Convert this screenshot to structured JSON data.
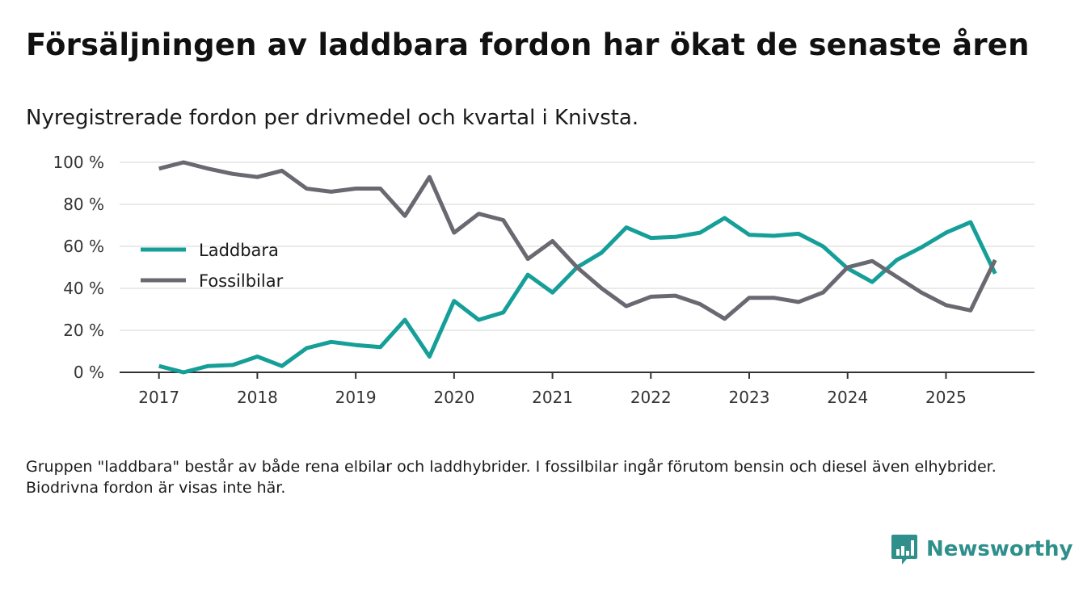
{
  "header": {
    "title": "Försäljningen av laddbara fordon har ökat de senaste åren",
    "subtitle": "Nyregistrerade fordon per drivmedel och kvartal i Knivsta."
  },
  "footnote": "Gruppen \"laddbara\" består av både rena elbilar och laddhybrider. I fossilbilar ingår förutom bensin och diesel även elhybrider. Biodrivna fordon är visas inte här.",
  "brand": {
    "name": "Newsworthy",
    "icon": "newsworthy-logo-icon",
    "color": "#2f8f8a"
  },
  "chart_data": {
    "type": "line",
    "title": "Försäljningen av laddbara fordon har ökat de senaste åren",
    "xlabel": "",
    "ylabel": "",
    "x": [
      2017.0,
      2017.25,
      2017.5,
      2017.75,
      2018.0,
      2018.25,
      2018.5,
      2018.75,
      2019.0,
      2019.25,
      2019.5,
      2019.75,
      2020.0,
      2020.25,
      2020.5,
      2020.75,
      2021.0,
      2021.25,
      2021.5,
      2021.75,
      2022.0,
      2022.25,
      2022.5,
      2022.75,
      2023.0,
      2023.25,
      2023.5,
      2023.75,
      2024.0,
      2024.25,
      2024.5,
      2024.75,
      2025.0,
      2025.25,
      2025.5
    ],
    "xlim": [
      2016.6,
      2025.9
    ],
    "ylim": [
      0,
      100
    ],
    "x_ticks": [
      2017,
      2018,
      2019,
      2020,
      2021,
      2022,
      2023,
      2024,
      2025
    ],
    "x_tick_labels": [
      "2017",
      "2018",
      "2019",
      "2020",
      "2021",
      "2022",
      "2023",
      "2024",
      "2025"
    ],
    "y_ticks": [
      0,
      20,
      40,
      60,
      80,
      100
    ],
    "y_tick_labels": [
      "0 %",
      "20 %",
      "40 %",
      "60 %",
      "80 %",
      "100 %"
    ],
    "grid": true,
    "legend_position": "center-left",
    "series": [
      {
        "name": "Laddbara",
        "color": "#159f98",
        "values": [
          3,
          0,
          3,
          3.5,
          7.5,
          3,
          11.5,
          14.5,
          13,
          12,
          25,
          7.5,
          34,
          25,
          28.5,
          46.5,
          38,
          50,
          57,
          69,
          64,
          64.5,
          66.5,
          73.5,
          65.5,
          65,
          66,
          60,
          49.5,
          43,
          53.5,
          59.5,
          66.5,
          71.5,
          47
        ]
      },
      {
        "name": "Fossilbilar",
        "color": "#6a6870",
        "values": [
          97,
          100,
          97,
          94.5,
          93,
          96,
          87.5,
          86,
          87.5,
          87.5,
          74.5,
          93,
          66.5,
          75.5,
          72.5,
          54,
          62.5,
          50,
          40,
          31.5,
          36,
          36.5,
          32.5,
          25.5,
          35.5,
          35.5,
          33.5,
          38,
          50,
          53,
          45.5,
          38,
          32,
          29.5,
          53.5
        ]
      }
    ]
  }
}
